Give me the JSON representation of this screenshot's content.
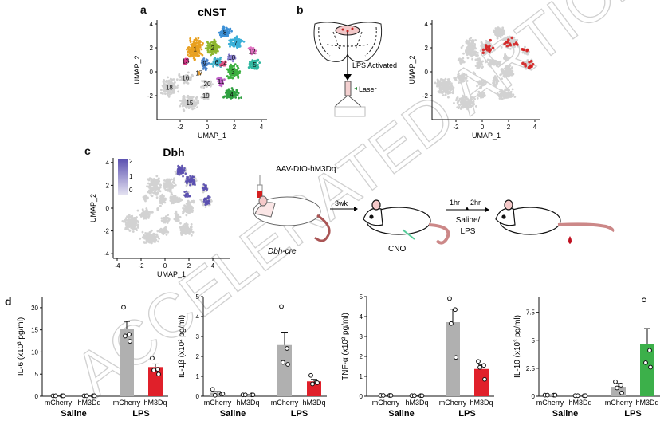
{
  "panel_labels": {
    "a": "a",
    "b": "b",
    "c": "c",
    "d": "d"
  },
  "watermark": "ACCELERATED ARTICLE PREVIEW",
  "panel_a": {
    "title": "cNST",
    "xlabel": "UMAP_1",
    "ylabel": "UMAP_2",
    "xticks": [
      "-2",
      "0",
      "2",
      "4"
    ],
    "yticks": [
      "4",
      "2",
      "0",
      "-2"
    ],
    "clusters": [
      {
        "id": "1",
        "color": "#e8a020"
      },
      {
        "id": "2",
        "color": "#8db62e"
      },
      {
        "id": "3",
        "color": "#3cb040"
      },
      {
        "id": "4",
        "color": "#2fa040"
      },
      {
        "id": "5",
        "color": "#30b8a0"
      },
      {
        "id": "6",
        "color": "#40b0c8"
      },
      {
        "id": "7",
        "color": "#3bb0d8"
      },
      {
        "id": "8",
        "color": "#3b8fd6"
      },
      {
        "id": "9",
        "color": "#4a80c8"
      },
      {
        "id": "10",
        "color": "#8a80d0"
      },
      {
        "id": "11",
        "color": "#c060c8"
      },
      {
        "id": "12",
        "color": "#e070c0"
      },
      {
        "id": "13",
        "color": "#d9368a"
      },
      {
        "id": "14",
        "color": "#e05080"
      },
      {
        "id": "15",
        "color": "#d0d0d0"
      },
      {
        "id": "16",
        "color": "#d0d0d0"
      },
      {
        "id": "17",
        "color": "#e09a30"
      },
      {
        "id": "18",
        "color": "#d0d0d0"
      },
      {
        "id": "19",
        "color": "#d0d0d0"
      },
      {
        "id": "20",
        "color": "#d0d0d0"
      }
    ]
  },
  "panel_b": {
    "lps_label": "LPS Activated",
    "laser_label": "Laser",
    "xlabel": "UMAP_1",
    "ylabel": "UMAP_2",
    "xticks": [
      "-2",
      "0",
      "2",
      "4"
    ],
    "yticks": [
      "4",
      "2",
      "0",
      "-2"
    ],
    "highlight_color": "#d42020"
  },
  "panel_c": {
    "title": "Dbh",
    "xlabel": "UMAP_1",
    "ylabel": "UMAP_2",
    "xticks": [
      "-4",
      "-2",
      "0",
      "2",
      "4"
    ],
    "yticks": [
      "4",
      "2",
      "0",
      "-2",
      "-4"
    ],
    "colorbar_ticks": [
      "2",
      "1",
      "0"
    ],
    "expr_color": "#5a4fb0",
    "virus_label": "AAV-DIO-hM3Dq",
    "mouse_line": "Dbh-cre",
    "wait_label": "3wk",
    "cno_label": "CNO",
    "t1_label": "1hr",
    "t2_label": "2hr",
    "treatment_label_1": "Saline/",
    "treatment_label_2": "LPS"
  },
  "chart_data": [
    {
      "type": "bar",
      "ylabel": "IL-6 (x10³ pg/ml)",
      "ylim": [
        0,
        22.5
      ],
      "yticks": [
        0,
        5,
        10,
        15,
        20
      ],
      "ytick_labels": [
        "0",
        "5",
        "10",
        "15",
        "20"
      ],
      "groups": [
        "Saline",
        "LPS"
      ],
      "categories": [
        "mCherry",
        "hM3Dq",
        "mCherry",
        "hM3Dq"
      ],
      "colors": [
        "#b0b0b0",
        "#b0b0b0",
        "#b0b0b0",
        "#e0202a"
      ],
      "values": [
        0.1,
        0.1,
        15.2,
        6.6
      ],
      "sem": [
        0.05,
        0.05,
        1.7,
        0.7
      ],
      "points": [
        [
          0.1,
          0.1,
          0.1,
          0.1
        ],
        [
          0.1,
          0.1,
          0.1,
          0.1
        ],
        [
          20.1,
          14.0,
          13.6,
          12.4
        ],
        [
          8.6,
          6.1,
          5.9,
          5.0
        ]
      ]
    },
    {
      "type": "bar",
      "ylabel": "IL-1β (x10² pg/ml)",
      "ylim": [
        0,
        5
      ],
      "yticks": [
        0,
        1,
        2,
        3,
        4,
        5
      ],
      "ytick_labels": [
        "0",
        "1",
        "2",
        "3",
        "4",
        "5"
      ],
      "groups": [
        "Saline",
        "LPS"
      ],
      "categories": [
        "mCherry",
        "hM3Dq",
        "mCherry",
        "hM3Dq"
      ],
      "colors": [
        "#b0b0b0",
        "#b0b0b0",
        "#b0b0b0",
        "#e0202a"
      ],
      "values": [
        0.18,
        0.07,
        2.57,
        0.75
      ],
      "sem": [
        0.06,
        0.01,
        0.65,
        0.1
      ],
      "points": [
        [
          0.35,
          0.1,
          0.05,
          0.12
        ],
        [
          0.07,
          0.07,
          0.07,
          0.07
        ],
        [
          4.5,
          2.4,
          1.7,
          1.6
        ],
        [
          1.05,
          0.7,
          0.62,
          0.68
        ]
      ]
    },
    {
      "type": "bar",
      "ylabel": "TNF-α (x10² pg/ml)",
      "ylim": [
        0,
        5
      ],
      "yticks": [
        0,
        1,
        2,
        3,
        4,
        5
      ],
      "ytick_labels": [
        "0",
        "1",
        "2",
        "3",
        "4",
        "5"
      ],
      "groups": [
        "Saline",
        "LPS"
      ],
      "categories": [
        "mCherry",
        "hM3Dq",
        "mCherry",
        "hM3Dq"
      ],
      "colors": [
        "#b0b0b0",
        "#b0b0b0",
        "#b0b0b0",
        "#e0202a"
      ],
      "values": [
        0.03,
        0.02,
        3.72,
        1.37
      ],
      "sem": [
        0.01,
        0.01,
        0.65,
        0.2
      ],
      "points": [
        [
          0.04,
          0.04,
          0.04,
          0.04
        ],
        [
          0.03,
          0.03,
          0.03,
          0.03
        ],
        [
          4.9,
          4.35,
          3.65,
          1.95
        ],
        [
          1.75,
          1.55,
          1.45,
          0.85
        ]
      ]
    },
    {
      "type": "bar",
      "ylabel": "IL-10 (x10³ pg/ml)",
      "ylim": [
        0,
        8.9
      ],
      "yticks": [
        0,
        2.5,
        5,
        7.5
      ],
      "ytick_labels": [
        "0",
        "2.5",
        "5",
        "7.5"
      ],
      "groups": [
        "Saline",
        "LPS"
      ],
      "categories": [
        "mCherry",
        "hM3Dq",
        "mCherry",
        "hM3Dq"
      ],
      "colors": [
        "#b0b0b0",
        "#b0b0b0",
        "#b0b0b0",
        "#3cb04a"
      ],
      "values": [
        0.1,
        0.05,
        0.85,
        4.65
      ],
      "sem": [
        0.02,
        0.02,
        0.3,
        1.4
      ],
      "points": [
        [
          0.1,
          0.1,
          0.1,
          0.1
        ],
        [
          0.05,
          0.05,
          0.05,
          0.05
        ],
        [
          1.3,
          1.0,
          0.75,
          0.3
        ],
        [
          8.6,
          4.1,
          3.0,
          2.6
        ]
      ]
    }
  ]
}
